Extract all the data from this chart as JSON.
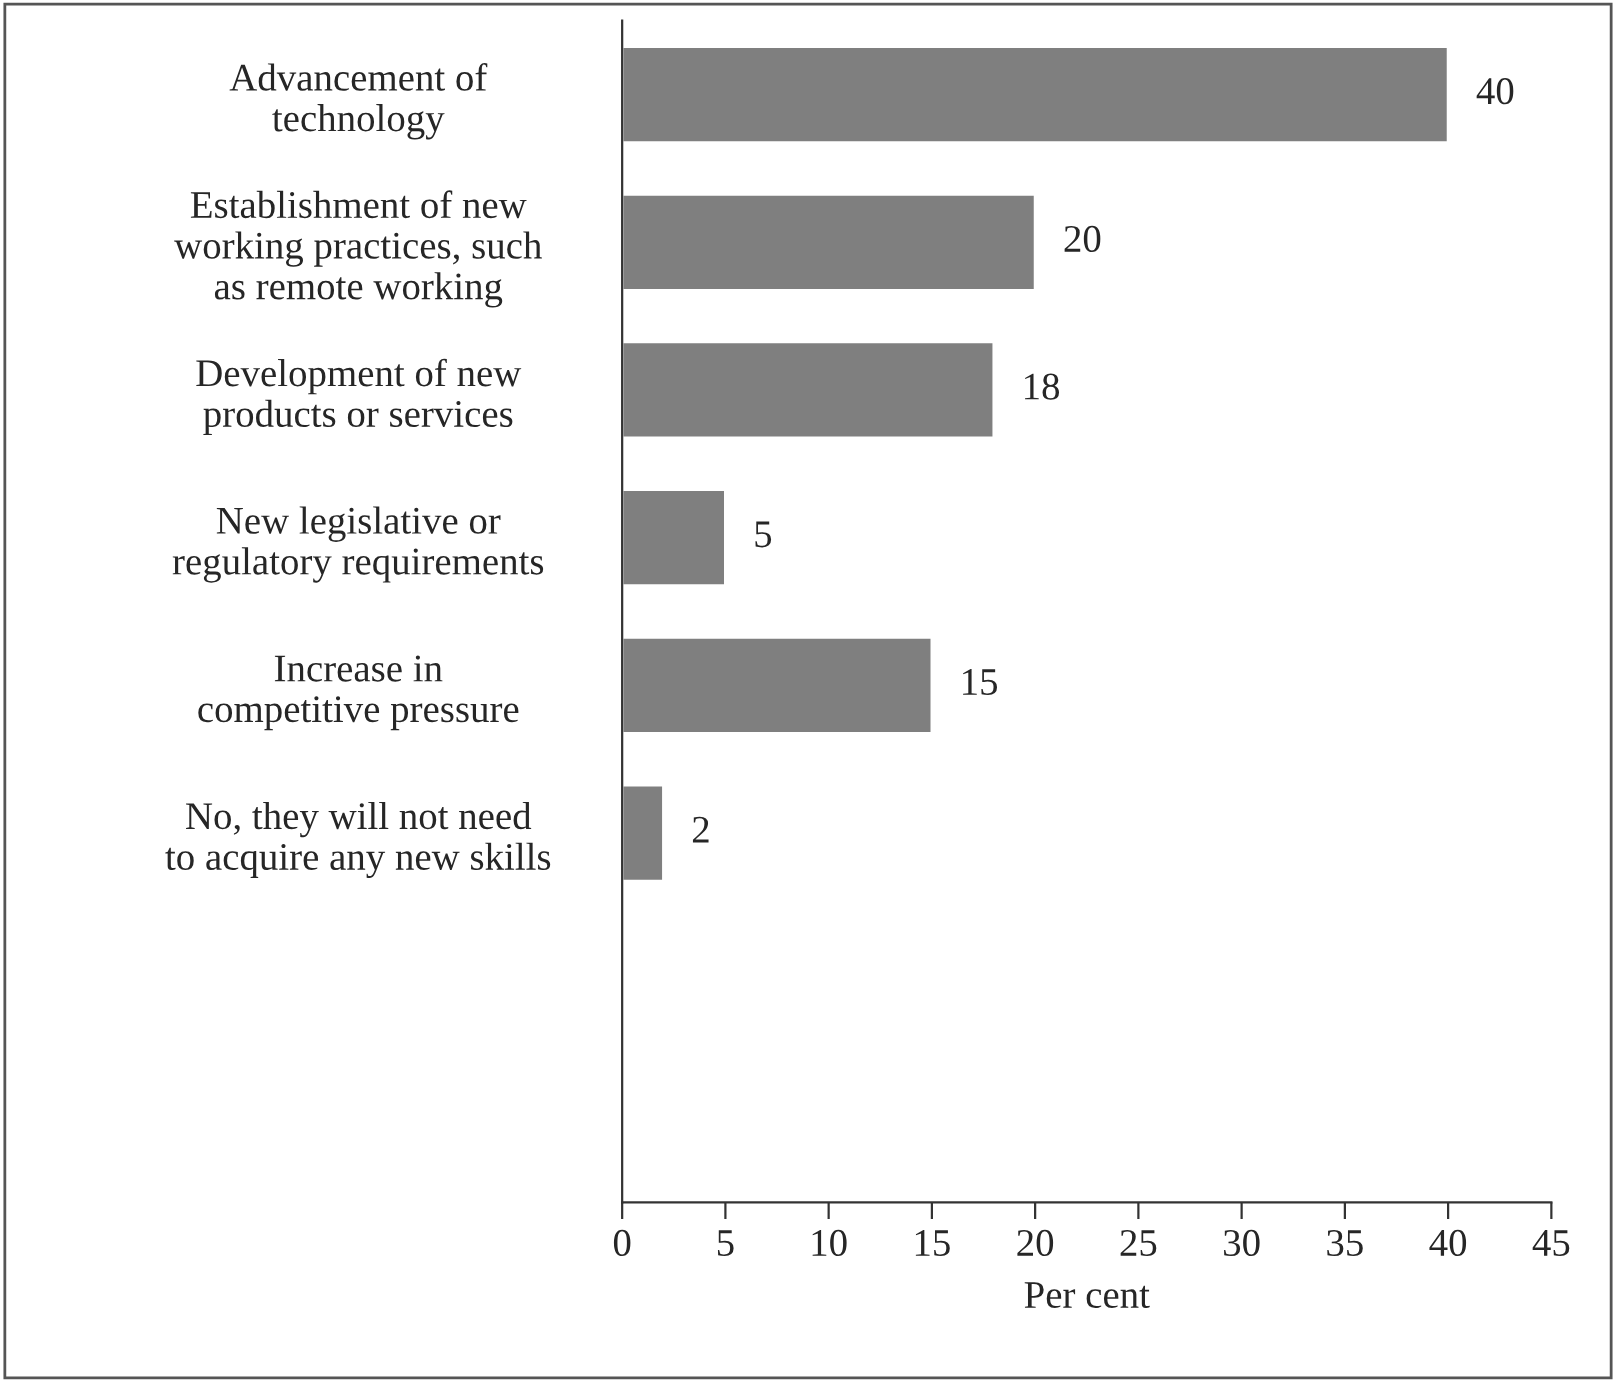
{
  "chart_data": {
    "type": "bar",
    "orientation": "horizontal",
    "categories": [
      "Advancement of\ntechnology",
      "Establishment of new\nworking practices, such\nas remote working",
      "Development of new\nproducts or services",
      "New legislative or\nregulatory requirements",
      "Increase in\ncompetitive pressure",
      "No, they will not need\nto acquire any new skills",
      null,
      null
    ],
    "values": [
      40,
      20,
      18,
      5,
      15,
      2,
      null,
      null
    ],
    "color": "#7f7f7f",
    "xlabel": "Per cent",
    "xlim": [
      0,
      45
    ],
    "xticks": [
      0,
      5,
      10,
      15,
      20,
      25,
      30,
      35,
      40,
      45
    ],
    "data_labels": true,
    "grid": false,
    "legend": false
  }
}
